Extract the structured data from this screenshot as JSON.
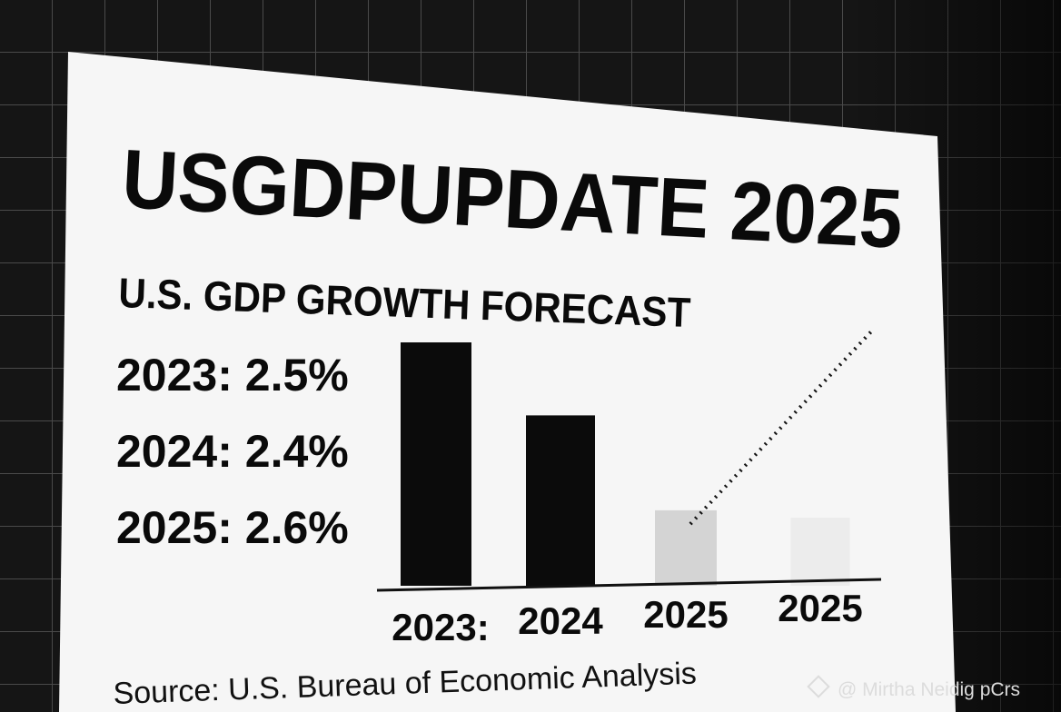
{
  "header": {
    "title": "USGDPUPDATE 2025",
    "subtitle": "U.S. GDP GROWTH FORECAST"
  },
  "list": [
    "2023: 2.5%",
    "2024: 2.4%",
    "2025: 2.6%"
  ],
  "chart_data": {
    "type": "bar",
    "categories": [
      "2023:",
      "2024",
      "2025",
      "2025"
    ],
    "values": [
      100,
      70,
      31,
      28
    ],
    "colors": [
      "#0b0b0b",
      "#0b0b0b",
      "#d4d4d4",
      "#ececec"
    ],
    "ylim": [
      0,
      100
    ]
  },
  "source": "Source: U.S. Bureau of Economic Analysis",
  "watermark": "@ Mirtha Neidig pCrs"
}
